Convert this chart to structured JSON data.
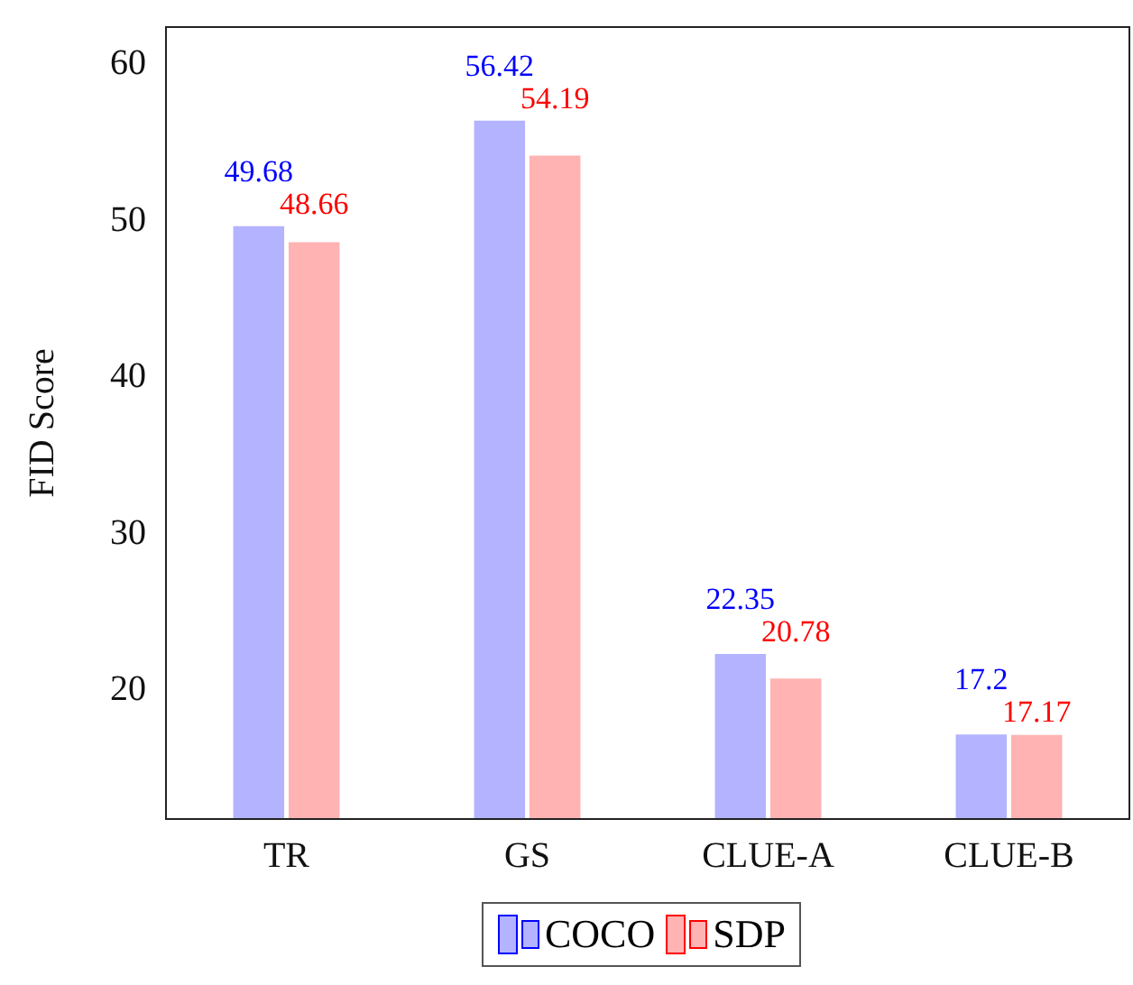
{
  "chart_data": {
    "type": "bar",
    "ylabel": "FID Score",
    "categories": [
      "TR",
      "GS",
      "CLUE-A",
      "CLUE-B"
    ],
    "series": [
      {
        "name": "COCO",
        "color": "#b3b3ff",
        "values": [
          49.68,
          56.42,
          22.35,
          17.2
        ]
      },
      {
        "name": "SDP",
        "color": "#ffb3b3",
        "values": [
          48.66,
          54.19,
          20.78,
          17.17
        ]
      }
    ],
    "ylim": [
      11.8,
      62.4
    ],
    "yticks": [
      20,
      30,
      40,
      50,
      60
    ],
    "grid": false,
    "legend": "bottom",
    "data_labels": true
  }
}
